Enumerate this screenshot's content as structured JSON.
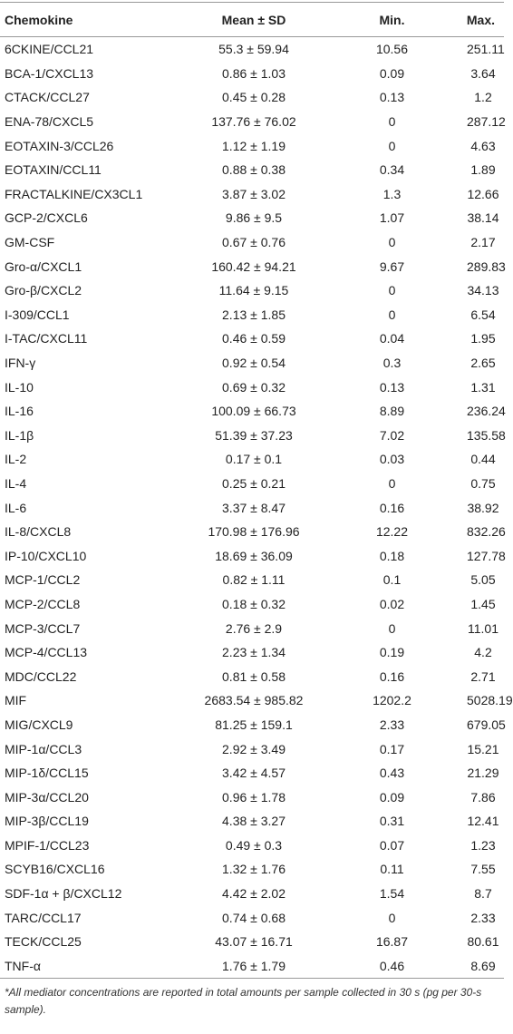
{
  "table": {
    "header": [
      "Chemokine",
      "Mean ± SD",
      "Min.",
      "Max."
    ],
    "rows": [
      [
        "6CKINE/CCL21",
        "55.3 ± 59.94",
        "10.56",
        "251.11"
      ],
      [
        "BCA-1/CXCL13",
        "0.86 ± 1.03",
        "0.09",
        "3.64"
      ],
      [
        "CTACK/CCL27",
        "0.45 ± 0.28",
        "0.13",
        "1.2"
      ],
      [
        "ENA-78/CXCL5",
        "137.76 ± 76.02",
        "0",
        "287.12"
      ],
      [
        "EOTAXIN-3/CCL26",
        "1.12 ± 1.19",
        "0",
        "4.63"
      ],
      [
        "EOTAXIN/CCL11",
        "0.88 ± 0.38",
        "0.34",
        "1.89"
      ],
      [
        "FRACTALKINE/CX3CL1",
        "3.87 ± 3.02",
        "1.3",
        "12.66"
      ],
      [
        "GCP-2/CXCL6",
        "9.86 ± 9.5",
        "1.07",
        "38.14"
      ],
      [
        "GM-CSF",
        "0.67 ± 0.76",
        "0",
        "2.17"
      ],
      [
        "Gro-α/CXCL1",
        "160.42 ± 94.21",
        "9.67",
        "289.83"
      ],
      [
        "Gro-β/CXCL2",
        "11.64 ± 9.15",
        "0",
        "34.13"
      ],
      [
        "I-309/CCL1",
        "2.13 ± 1.85",
        "0",
        "6.54"
      ],
      [
        "I-TAC/CXCL11",
        "0.46 ± 0.59",
        "0.04",
        "1.95"
      ],
      [
        "IFN-γ",
        "0.92 ± 0.54",
        "0.3",
        "2.65"
      ],
      [
        "IL-10",
        "0.69 ± 0.32",
        "0.13",
        "1.31"
      ],
      [
        "IL-16",
        "100.09 ± 66.73",
        "8.89",
        "236.24"
      ],
      [
        "IL-1β",
        "51.39 ± 37.23",
        "7.02",
        "135.58"
      ],
      [
        "IL-2",
        "0.17 ± 0.1",
        "0.03",
        "0.44"
      ],
      [
        "IL-4",
        "0.25 ± 0.21",
        "0",
        "0.75"
      ],
      [
        "IL-6",
        "3.37 ± 8.47",
        "0.16",
        "38.92"
      ],
      [
        "IL-8/CXCL8",
        "170.98 ± 176.96",
        "12.22",
        "832.26"
      ],
      [
        "IP-10/CXCL10",
        "18.69 ± 36.09",
        "0.18",
        "127.78"
      ],
      [
        "MCP-1/CCL2",
        "0.82 ± 1.11",
        "0.1",
        "5.05"
      ],
      [
        "MCP-2/CCL8",
        "0.18 ± 0.32",
        "0.02",
        "1.45"
      ],
      [
        "MCP-3/CCL7",
        "2.76 ± 2.9",
        "0",
        "11.01"
      ],
      [
        "MCP-4/CCL13",
        "2.23 ± 1.34",
        "0.19",
        "4.2"
      ],
      [
        "MDC/CCL22",
        "0.81 ± 0.58",
        "0.16",
        "2.71"
      ],
      [
        "MIF",
        "2683.54 ± 985.82",
        "1202.2",
        "5028.19"
      ],
      [
        "MIG/CXCL9",
        "81.25 ± 159.1",
        "2.33",
        "679.05"
      ],
      [
        "MIP-1α/CCL3",
        "2.92 ± 3.49",
        "0.17",
        "15.21"
      ],
      [
        "MIP-1δ/CCL15",
        "3.42 ± 4.57",
        "0.43",
        "21.29"
      ],
      [
        "MIP-3α/CCL20",
        "0.96 ± 1.78",
        "0.09",
        "7.86"
      ],
      [
        "MIP-3β/CCL19",
        "4.38 ± 3.27",
        "0.31",
        "12.41"
      ],
      [
        "MPIF-1/CCL23",
        "0.49 ± 0.3",
        "0.07",
        "1.23"
      ],
      [
        "SCYB16/CXCL16",
        "1.32 ± 1.76",
        "0.11",
        "7.55"
      ],
      [
        "SDF-1α + β/CXCL12",
        "4.42 ± 2.02",
        "1.54",
        "8.7"
      ],
      [
        "TARC/CCL17",
        "0.74 ± 0.68",
        "0",
        "2.33"
      ],
      [
        "TECK/CCL25",
        "43.07 ± 16.71",
        "16.87",
        "80.61"
      ],
      [
        "TNF-α",
        "1.76 ± 1.79",
        "0.46",
        "8.69"
      ]
    ],
    "footnote": "*All mediator concentrations are reported in total amounts per sample collected in 30 s (pg per 30-s sample)."
  }
}
